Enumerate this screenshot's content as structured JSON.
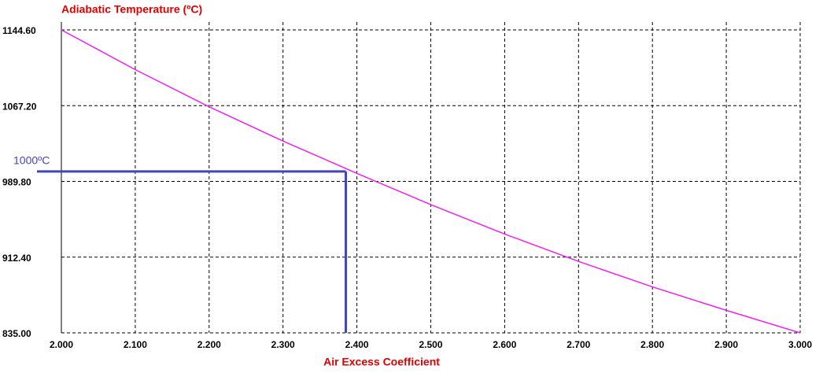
{
  "chart_data": {
    "type": "line",
    "title": "Adiabatic Temperature (ºC)",
    "x_label": "Air Excess Coefficient",
    "x": [
      2.0,
      2.1,
      2.2,
      2.3,
      2.4,
      2.5,
      2.6,
      2.7,
      2.8,
      2.9,
      3.0
    ],
    "values": [
      1144.6,
      1104,
      1066,
      1031,
      998,
      966,
      936,
      908,
      882,
      858,
      835
    ],
    "color": "#ee22ee",
    "xlim": [
      2.0,
      3.0
    ],
    "ylim": [
      835,
      1144.6
    ],
    "xticks": [
      {
        "value": 2.0,
        "label": "2.000"
      },
      {
        "value": 2.1,
        "label": "2.100"
      },
      {
        "value": 2.2,
        "label": "2.200"
      },
      {
        "value": 2.3,
        "label": "2.300"
      },
      {
        "value": 2.4,
        "label": "2.400"
      },
      {
        "value": 2.5,
        "label": "2.500"
      },
      {
        "value": 2.6,
        "label": "2.600"
      },
      {
        "value": 2.7,
        "label": "2.700"
      },
      {
        "value": 2.8,
        "label": "2.800"
      },
      {
        "value": 2.9,
        "label": "2.900"
      },
      {
        "value": 3.0,
        "label": "3.000"
      }
    ],
    "yticks": [
      {
        "value": 835,
        "label": "835.00"
      },
      {
        "value": 912.4,
        "label": "912.40"
      },
      {
        "value": 989.8,
        "label": "989.80"
      },
      {
        "value": 1067.2,
        "label": "1067.20"
      },
      {
        "value": 1144.6,
        "label": "1144.60"
      }
    ],
    "grid": true,
    "annotations": [
      {
        "text": "1000ºC",
        "x": 2.385,
        "y": 1000,
        "color": "#4444bb"
      }
    ]
  }
}
